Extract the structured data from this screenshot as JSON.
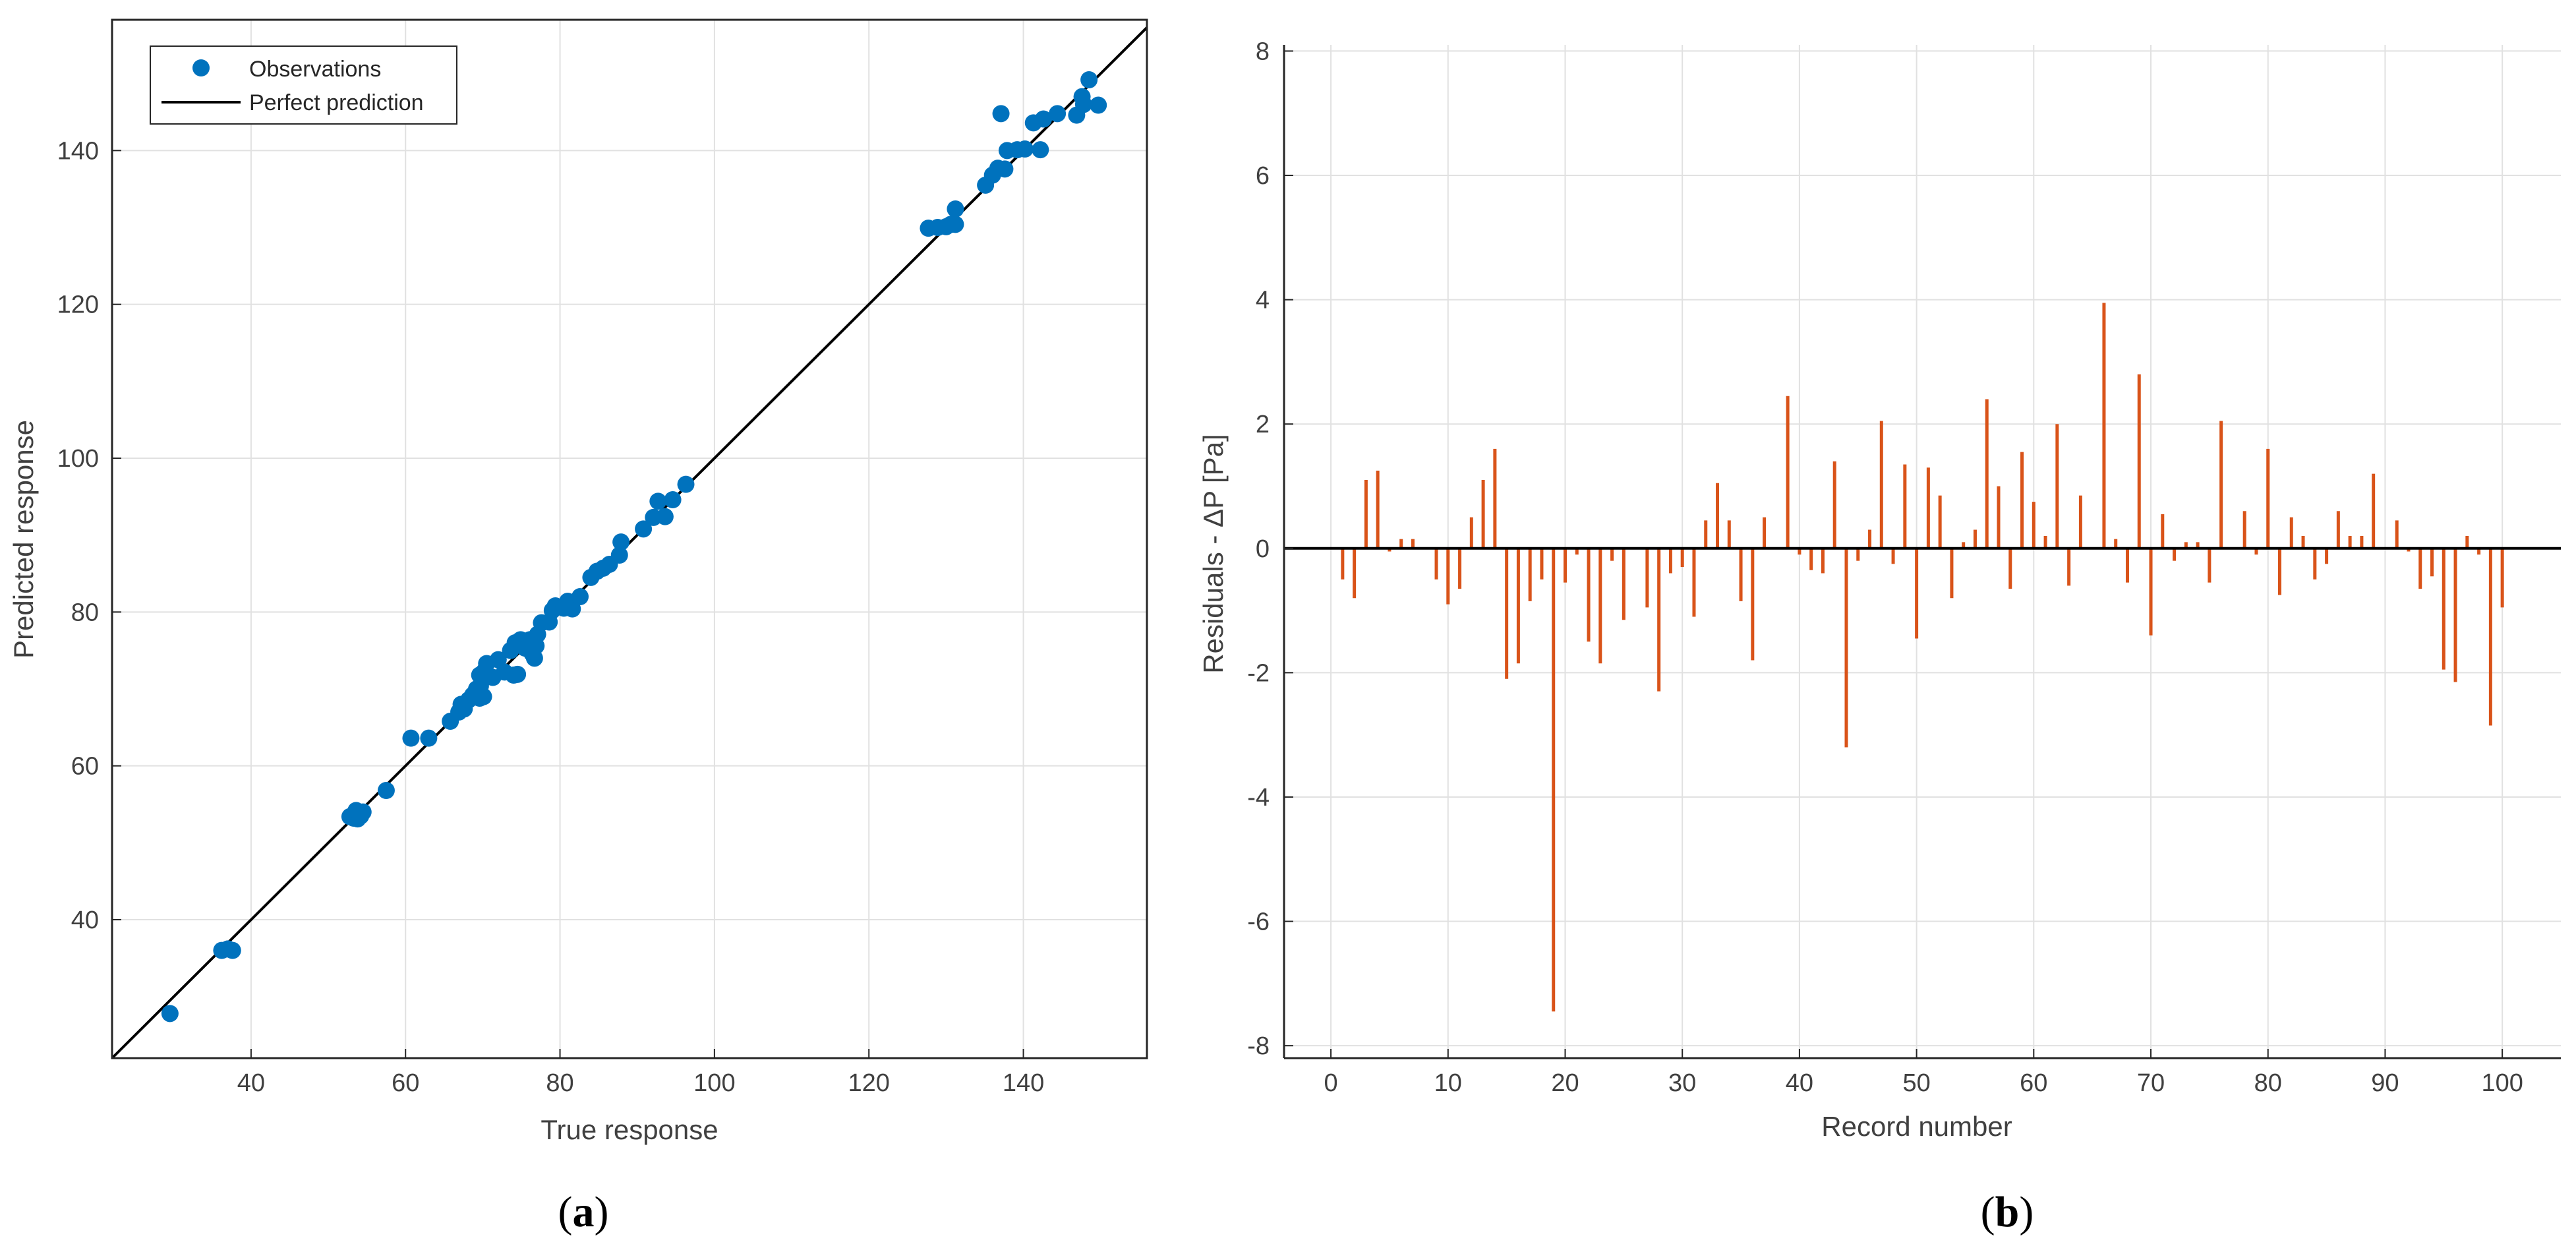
{
  "chart_data": [
    {
      "type": "scatter",
      "panel_label": "a",
      "xlabel": "True response",
      "ylabel": "Predicted response",
      "xlim": [
        22,
        156
      ],
      "ylim": [
        22,
        157
      ],
      "xticks": [
        "40",
        "60",
        "80",
        "100",
        "120",
        "140"
      ],
      "yticks": [
        "40",
        "60",
        "80",
        "100",
        "120",
        "140"
      ],
      "grid": true,
      "legend": {
        "position": "top-left",
        "entries": [
          "Observations",
          "Perfect prediction"
        ]
      },
      "colors": {
        "observations": "#0072BD",
        "perfect_prediction": "#000000"
      },
      "series": [
        {
          "name": "Observations",
          "points": [
            [
              29.5,
              27.8
            ],
            [
              36.2,
              36.0
            ],
            [
              37.0,
              36.2
            ],
            [
              37.6,
              36.0
            ],
            [
              52.8,
              53.4
            ],
            [
              53.3,
              53.2
            ],
            [
              53.8,
              53.1
            ],
            [
              54.2,
              53.5
            ],
            [
              54.5,
              54.0
            ],
            [
              53.6,
              54.2
            ],
            [
              57.5,
              56.8
            ],
            [
              60.7,
              63.6
            ],
            [
              63.0,
              63.6
            ],
            [
              65.8,
              65.8
            ],
            [
              66.9,
              67.0
            ],
            [
              67.6,
              67.4
            ],
            [
              67.2,
              68.0
            ],
            [
              68.2,
              68.6
            ],
            [
              68.7,
              69.2
            ],
            [
              69.2,
              70.0
            ],
            [
              69.7,
              70.4
            ],
            [
              69.6,
              71.8
            ],
            [
              70.2,
              72.3
            ],
            [
              70.5,
              73.3
            ],
            [
              70.1,
              69.0
            ],
            [
              69.6,
              68.8
            ],
            [
              71.3,
              71.5
            ],
            [
              72.0,
              73.8
            ],
            [
              72.8,
              72.2
            ],
            [
              73.6,
              75.0
            ],
            [
              74.0,
              71.8
            ],
            [
              74.5,
              71.9
            ],
            [
              74.2,
              76.0
            ],
            [
              74.9,
              76.4
            ],
            [
              75.5,
              75.3
            ],
            [
              76.1,
              76.4
            ],
            [
              76.4,
              74.6
            ],
            [
              76.7,
              74.0
            ],
            [
              76.9,
              75.6
            ],
            [
              77.1,
              77.1
            ],
            [
              77.6,
              78.6
            ],
            [
              78.6,
              78.7
            ],
            [
              79.0,
              80.2
            ],
            [
              79.4,
              80.8
            ],
            [
              80.5,
              80.5
            ],
            [
              81.0,
              81.4
            ],
            [
              81.6,
              80.4
            ],
            [
              82.6,
              82.0
            ],
            [
              84.0,
              84.5
            ],
            [
              84.8,
              85.3
            ],
            [
              85.6,
              85.7
            ],
            [
              86.4,
              86.2
            ],
            [
              87.7,
              87.4
            ],
            [
              87.9,
              89.1
            ],
            [
              90.8,
              90.8
            ],
            [
              92.1,
              92.3
            ],
            [
              92.7,
              94.4
            ],
            [
              93.6,
              92.4
            ],
            [
              94.6,
              94.6
            ],
            [
              96.3,
              96.6
            ],
            [
              127.7,
              129.9
            ],
            [
              128.9,
              130.0
            ],
            [
              130.0,
              130.1
            ],
            [
              130.6,
              130.4
            ],
            [
              131.2,
              130.4
            ],
            [
              131.2,
              132.4
            ],
            [
              135.1,
              135.5
            ],
            [
              136.0,
              136.8
            ],
            [
              136.7,
              137.7
            ],
            [
              137.1,
              144.8
            ],
            [
              137.6,
              137.6
            ],
            [
              137.9,
              140.0
            ],
            [
              139.2,
              140.1
            ],
            [
              140.2,
              140.2
            ],
            [
              141.3,
              143.6
            ],
            [
              142.2,
              140.1
            ],
            [
              142.6,
              144.1
            ],
            [
              144.4,
              144.8
            ],
            [
              146.9,
              144.6
            ],
            [
              147.6,
              147.0
            ],
            [
              147.8,
              146.0
            ],
            [
              148.5,
              149.2
            ],
            [
              149.7,
              145.9
            ]
          ]
        },
        {
          "name": "Perfect prediction",
          "line": [
            [
              22,
              22
            ],
            [
              156,
              156
            ]
          ]
        }
      ]
    },
    {
      "type": "bar",
      "panel_label": "b",
      "xlabel": "Record number",
      "ylabel": "Residuals - ΔP [Pa]",
      "xlim": [
        -4,
        105
      ],
      "ylim": [
        -8.2,
        8.1
      ],
      "xticks": [
        "0",
        "10",
        "20",
        "30",
        "40",
        "50",
        "60",
        "70",
        "80",
        "90",
        "100"
      ],
      "yticks": [
        "-8",
        "-6",
        "-4",
        "-2",
        "0",
        "2",
        "4",
        "6",
        "8"
      ],
      "grid": true,
      "colors": {
        "residuals": "#D95319",
        "zero_line": "#000000"
      },
      "series": [
        {
          "name": "",
          "x": [
            1,
            2,
            3,
            4,
            5,
            6,
            7,
            8,
            9,
            10,
            11,
            12,
            13,
            14,
            15,
            16,
            17,
            18,
            19,
            20,
            21,
            22,
            23,
            24,
            25,
            26,
            27,
            28,
            29,
            30,
            31,
            32,
            33,
            34,
            35,
            36,
            37,
            38,
            39,
            40,
            41,
            42,
            43,
            44,
            45,
            46,
            47,
            48,
            49,
            50,
            51,
            52,
            53,
            54,
            55,
            56,
            57,
            58,
            59,
            60,
            61,
            62,
            63,
            64,
            65,
            66,
            67,
            68,
            69,
            70,
            71,
            72,
            73,
            74,
            75,
            76,
            77,
            78,
            79,
            80,
            81,
            82,
            83,
            84,
            85,
            86,
            87,
            88,
            89,
            90,
            91,
            92,
            93,
            94,
            95,
            96,
            97,
            98,
            99,
            100
          ],
          "values": [
            -0.5,
            -0.8,
            1.1,
            1.25,
            -0.05,
            0.15,
            0.15,
            0.0,
            -0.5,
            -0.9,
            -0.65,
            0.5,
            1.1,
            1.6,
            -2.1,
            -1.85,
            -0.85,
            -0.5,
            -7.45,
            -0.55,
            -0.1,
            -1.5,
            -1.85,
            -0.2,
            -1.15,
            0.0,
            -0.95,
            -2.3,
            -0.4,
            -0.3,
            -1.1,
            0.45,
            1.05,
            0.45,
            -0.85,
            -1.8,
            0.5,
            0.0,
            2.45,
            -0.1,
            -0.35,
            -0.4,
            1.4,
            -3.2,
            -0.2,
            0.3,
            2.05,
            -0.25,
            1.35,
            -1.45,
            1.3,
            0.85,
            -0.8,
            0.1,
            0.3,
            2.4,
            1.0,
            -0.65,
            1.55,
            0.75,
            0.2,
            2.0,
            -0.6,
            0.85,
            0.0,
            3.95,
            0.15,
            -0.55,
            2.8,
            -1.4,
            0.55,
            -0.2,
            0.1,
            0.1,
            -0.55,
            2.05,
            0.0,
            0.6,
            -0.1,
            1.6,
            -0.75,
            0.5,
            0.2,
            -0.5,
            -0.25,
            0.6,
            0.2,
            0.2,
            1.2,
            0.0,
            0.45,
            -0.05,
            -0.65,
            -0.45,
            -1.95,
            -2.15,
            0.2,
            -0.1,
            -2.85,
            -0.95
          ]
        }
      ]
    }
  ]
}
